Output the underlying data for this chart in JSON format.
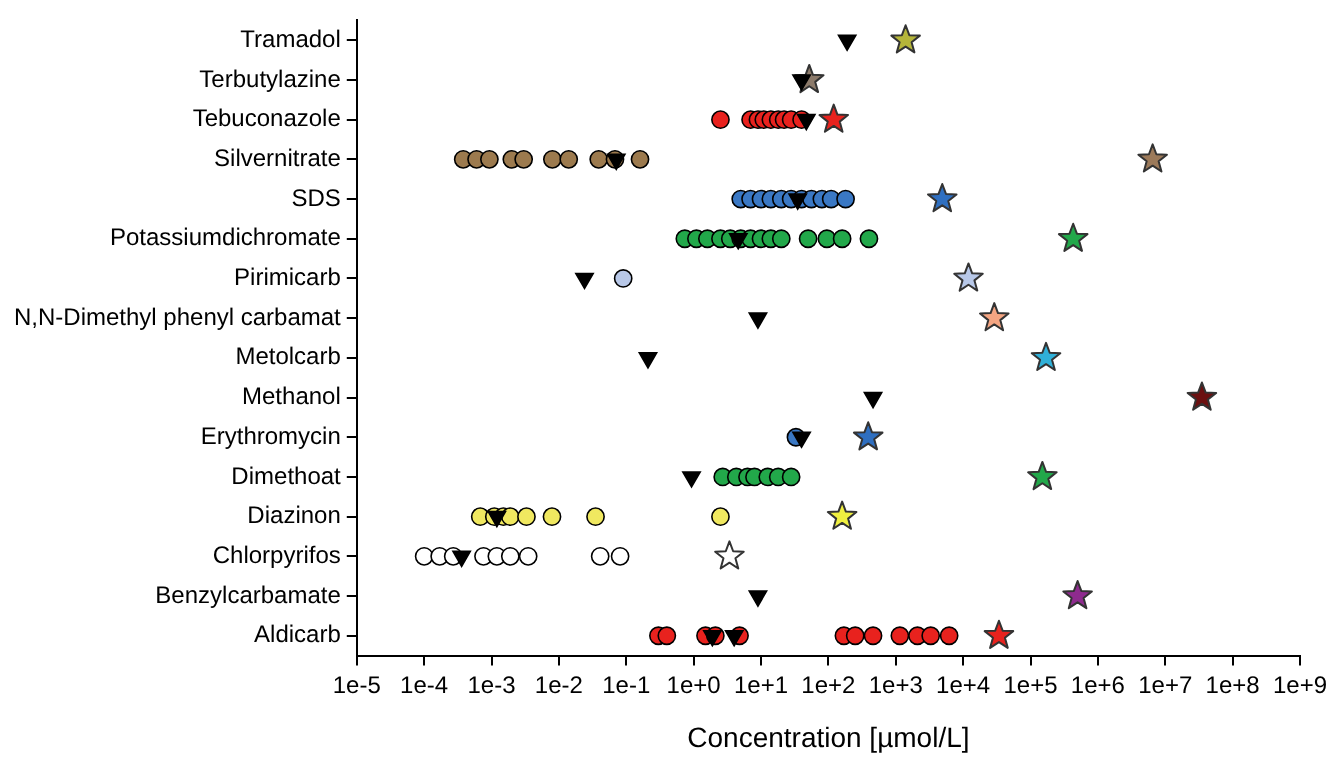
{
  "chart_data": {
    "type": "scatter",
    "orientation": "horizontal",
    "xlabel": "Concentration [µmol/L]",
    "log": "x",
    "grid": false,
    "legend": false,
    "categories": [
      "Tramadol",
      "Terbutylazine",
      "Tebuconazole",
      "Silvernitrate",
      "SDS",
      "Potassiumdichromate",
      "Pirimicarb",
      "N,N-Dimethyl phenyl carbamat",
      "Metolcarb",
      "Methanol",
      "Erythromycin",
      "Dimethoat",
      "Diazinon",
      "Chlorpyrifos",
      "Benzylcarbamate",
      "Aldicarb"
    ],
    "xlim": [
      1e-05,
      1000000000.0
    ],
    "xticks": [
      {
        "value": 1e-05,
        "label": "1e-5"
      },
      {
        "value": 0.0001,
        "label": "1e-4"
      },
      {
        "value": 0.001,
        "label": "1e-3"
      },
      {
        "value": 0.01,
        "label": "1e-2"
      },
      {
        "value": 0.1,
        "label": "1e-1"
      },
      {
        "value": 1,
        "label": "1e+0"
      },
      {
        "value": 10,
        "label": "1e+1"
      },
      {
        "value": 100,
        "label": "1e+2"
      },
      {
        "value": 1000,
        "label": "1e+3"
      },
      {
        "value": 10000,
        "label": "1e+4"
      },
      {
        "value": 100000,
        "label": "1e+5"
      },
      {
        "value": 1000000,
        "label": "1e+6"
      },
      {
        "value": 10000000,
        "label": "1e+7"
      },
      {
        "value": 100000000,
        "label": "1e+8"
      },
      {
        "value": 1000000000,
        "label": "1e+9"
      }
    ],
    "series": [
      {
        "marker": "circle",
        "x": [
          "Tebuconazole",
          "Tebuconazole",
          "Tebuconazole",
          "Tebuconazole",
          "Tebuconazole",
          "Tebuconazole",
          "Tebuconazole",
          "Tebuconazole",
          "Tebuconazole",
          "Silvernitrate",
          "Silvernitrate",
          "Silvernitrate",
          "Silvernitrate",
          "Silvernitrate",
          "Silvernitrate",
          "Silvernitrate",
          "Silvernitrate",
          "Silvernitrate",
          "Silvernitrate",
          "SDS",
          "SDS",
          "SDS",
          "SDS",
          "SDS",
          "SDS",
          "SDS",
          "SDS",
          "SDS",
          "SDS",
          "SDS",
          "Potassiumdichromate",
          "Potassiumdichromate",
          "Potassiumdichromate",
          "Potassiumdichromate",
          "Potassiumdichromate",
          "Potassiumdichromate",
          "Potassiumdichromate",
          "Potassiumdichromate",
          "Potassiumdichromate",
          "Potassiumdichromate",
          "Potassiumdichromate",
          "Potassiumdichromate",
          "Potassiumdichromate",
          "Potassiumdichromate",
          "Pirimicarb",
          "Erythromycin",
          "Dimethoat",
          "Dimethoat",
          "Dimethoat",
          "Dimethoat",
          "Dimethoat",
          "Dimethoat",
          "Dimethoat",
          "Diazinon",
          "Diazinon",
          "Diazinon",
          "Diazinon",
          "Diazinon",
          "Diazinon",
          "Diazinon",
          "Diazinon",
          "Chlorpyrifos",
          "Chlorpyrifos",
          "Chlorpyrifos",
          "Chlorpyrifos",
          "Chlorpyrifos",
          "Chlorpyrifos",
          "Chlorpyrifos",
          "Chlorpyrifos",
          "Chlorpyrifos",
          "Aldicarb",
          "Aldicarb",
          "Aldicarb",
          "Aldicarb",
          "Aldicarb",
          "Aldicarb",
          "Aldicarb",
          "Aldicarb",
          "Aldicarb",
          "Aldicarb",
          "Aldicarb",
          "Aldicarb"
        ],
        "values": [
          2.5,
          7,
          9,
          11,
          14,
          18,
          22,
          28,
          40,
          0.00038,
          0.0006,
          0.00093,
          0.002,
          0.003,
          0.008,
          0.014,
          0.039,
          0.068,
          0.16,
          5,
          7,
          10,
          14,
          20,
          28,
          40,
          56,
          80,
          110,
          180,
          0.74,
          1.1,
          1.6,
          2.5,
          3.5,
          5,
          7,
          10,
          14,
          20,
          50,
          95,
          160,
          400,
          0.09,
          33,
          2.7,
          4.3,
          6.3,
          8,
          12.6,
          18,
          28,
          0.00068,
          0.0011,
          0.0015,
          0.0019,
          0.0033,
          0.0079,
          0.035,
          2.5,
          0.0001,
          0.00017,
          0.00027,
          0.00076,
          0.0012,
          0.0019,
          0.0035,
          0.041,
          0.081,
          0.3,
          0.4,
          1.5,
          2.1,
          4.8,
          170,
          250,
          460,
          1150,
          2100,
          3300,
          6200
        ],
        "colors": [
          "#e8221e",
          "#e8221e",
          "#e8221e",
          "#e8221e",
          "#e8221e",
          "#e8221e",
          "#e8221e",
          "#e8221e",
          "#e8221e",
          "#9c7a4e",
          "#9c7a4e",
          "#9c7a4e",
          "#9c7a4e",
          "#9c7a4e",
          "#9c7a4e",
          "#9c7a4e",
          "#9c7a4e",
          "#9c7a4e",
          "#9c7a4e",
          "#3a78c4",
          "#3a78c4",
          "#3a78c4",
          "#3a78c4",
          "#3a78c4",
          "#3a78c4",
          "#3a78c4",
          "#3a78c4",
          "#3a78c4",
          "#3a78c4",
          "#3a78c4",
          "#22a84a",
          "#22a84a",
          "#22a84a",
          "#22a84a",
          "#22a84a",
          "#22a84a",
          "#22a84a",
          "#22a84a",
          "#22a84a",
          "#22a84a",
          "#22a84a",
          "#22a84a",
          "#22a84a",
          "#22a84a",
          "#b8c8e8",
          "#3a78c4",
          "#22a84a",
          "#22a84a",
          "#22a84a",
          "#22a84a",
          "#22a84a",
          "#22a84a",
          "#22a84a",
          "#f0e860",
          "#f0e860",
          "#f0e860",
          "#f0e860",
          "#f0e860",
          "#f0e860",
          "#f0e860",
          "#f0e860",
          "#ffffff",
          "#ffffff",
          "#ffffff",
          "#ffffff",
          "#ffffff",
          "#ffffff",
          "#ffffff",
          "#ffffff",
          "#ffffff",
          "#e8221e",
          "#e8221e",
          "#e8221e",
          "#e8221e",
          "#e8221e",
          "#e8221e",
          "#e8221e",
          "#e8221e",
          "#e8221e",
          "#e8221e",
          "#e8221e",
          "#e8221e"
        ]
      },
      {
        "marker": "triangle",
        "color": "#000000",
        "x": [
          "Tramadol",
          "Terbutylazine",
          "Tebuconazole",
          "Silvernitrate",
          "SDS",
          "Potassiumdichromate",
          "Pirimicarb",
          "N,N-Dimethyl phenyl carbamat",
          "Metolcarb",
          "Methanol",
          "Erythromycin",
          "Dimethoat",
          "Diazinon",
          "Chlorpyrifos",
          "Benzylcarbamate",
          "Aldicarb",
          "Aldicarb"
        ],
        "values": [
          190,
          40,
          47,
          0.071,
          35,
          4.6,
          0.024,
          9,
          0.21,
          460,
          40,
          0.93,
          0.0012,
          0.00036,
          9,
          1.9,
          4
        ]
      },
      {
        "marker": "star",
        "x": [
          "Tramadol",
          "Terbutylazine",
          "Tebuconazole",
          "Silvernitrate",
          "SDS",
          "Potassiumdichromate",
          "Pirimicarb",
          "N,N-Dimethyl phenyl carbamat",
          "Metolcarb",
          "Methanol",
          "Erythromycin",
          "Dimethoat",
          "Diazinon",
          "Chlorpyrifos",
          "Benzylcarbamate",
          "Aldicarb"
        ],
        "values": [
          1400,
          52,
          120,
          6500000,
          4900,
          430000,
          12000,
          29000,
          170000,
          35000000,
          390,
          150000,
          160,
          3.4,
          500000,
          34000
        ],
        "colors": [
          "#b5b53a",
          "#8c7a6a",
          "#e8221e",
          "#9c7a5a",
          "#2f6fc0",
          "#22a84a",
          "#b8c8e8",
          "#f4a582",
          "#30b0d8",
          "#6b1010",
          "#2f6fc0",
          "#22a84a",
          "#f0f040",
          "#ffffff",
          "#8e2b8e",
          "#e8221e"
        ]
      }
    ]
  }
}
